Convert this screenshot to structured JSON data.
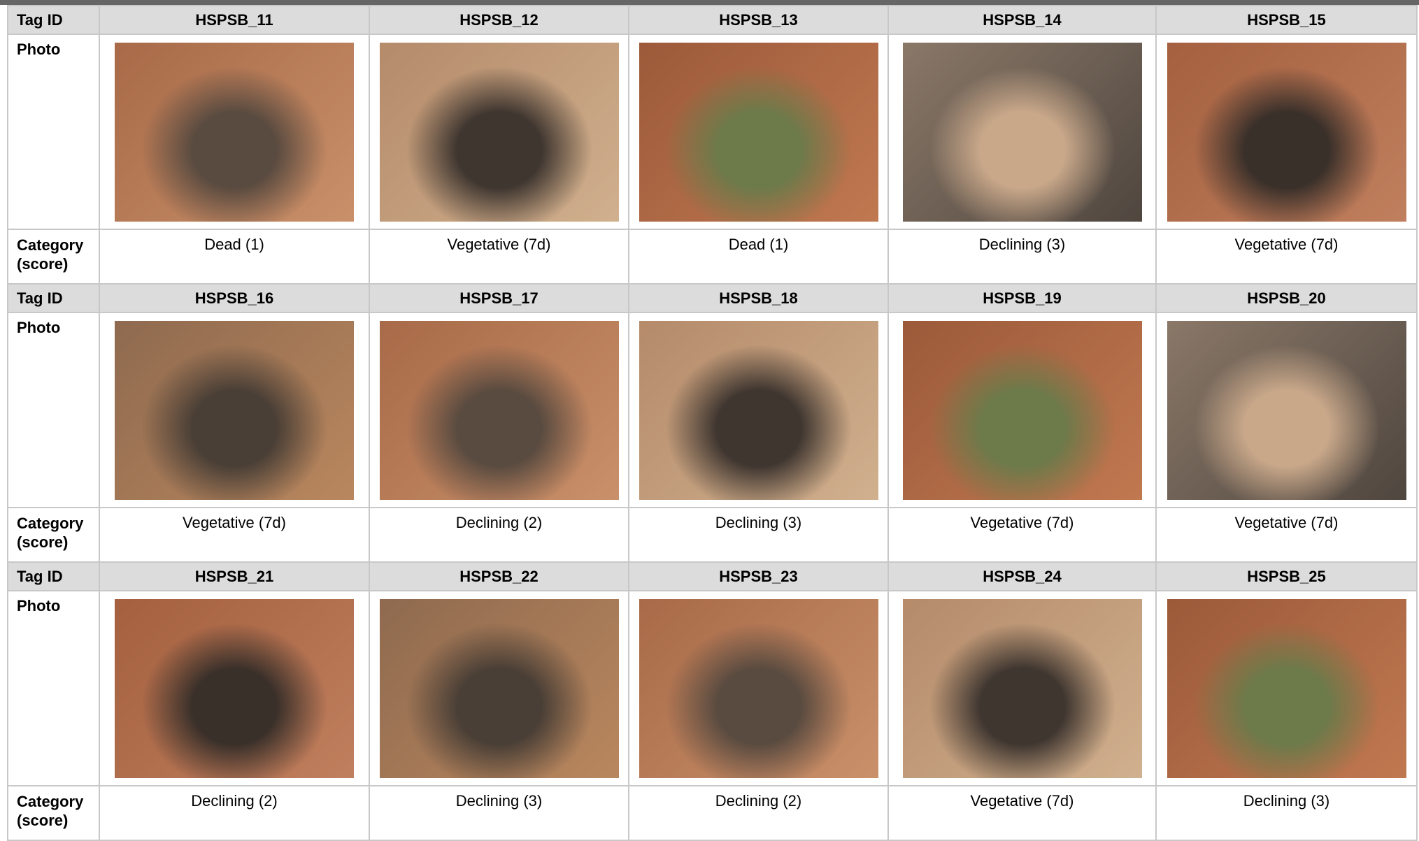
{
  "labels": {
    "tag_id": "Tag ID",
    "photo": "Photo",
    "category": "Category (score)"
  },
  "blocks": [
    {
      "tags": [
        "HSPSB_11",
        "HSPSB_12",
        "HSPSB_13",
        "HSPSB_14",
        "HSPSB_15"
      ],
      "categories": [
        "Dead (1)",
        "Vegetative (7d)",
        "Dead (1)",
        "Declining (3)",
        "Vegetative (7d)"
      ]
    },
    {
      "tags": [
        "HSPSB_16",
        "HSPSB_17",
        "HSPSB_18",
        "HSPSB_19",
        "HSPSB_20"
      ],
      "categories": [
        "Vegetative (7d)",
        "Declining (2)",
        "Declining (3)",
        "Vegetative (7d)",
        "Vegetative (7d)"
      ]
    },
    {
      "tags": [
        "HSPSB_21",
        "HSPSB_22",
        "HSPSB_23",
        "HSPSB_24",
        "HSPSB_25"
      ],
      "categories": [
        "Declining (2)",
        "Declining (3)",
        "Declining (2)",
        "Vegetative (7d)",
        "Declining (3)"
      ]
    }
  ]
}
